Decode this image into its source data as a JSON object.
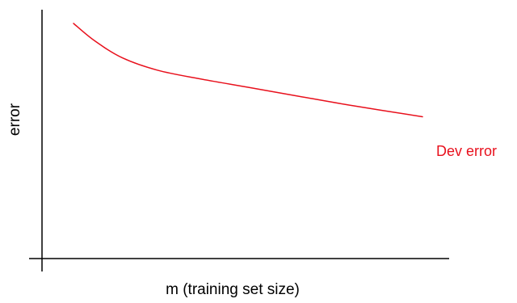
{
  "chart_data": {
    "type": "line",
    "title": "",
    "xlabel": "m (training set size)",
    "ylabel": "error",
    "grid": false,
    "axis_ticks": false,
    "series": [
      {
        "name": "Dev error",
        "color": "#e8101c",
        "shape": [
          [
            0.0,
            1.0
          ],
          [
            0.06,
            0.86
          ],
          [
            0.14,
            0.72
          ],
          [
            0.24,
            0.62
          ],
          [
            0.36,
            0.55
          ],
          [
            0.5,
            0.48
          ],
          [
            0.64,
            0.41
          ],
          [
            0.8,
            0.33
          ],
          [
            1.0,
            0.24
          ]
        ]
      }
    ]
  }
}
